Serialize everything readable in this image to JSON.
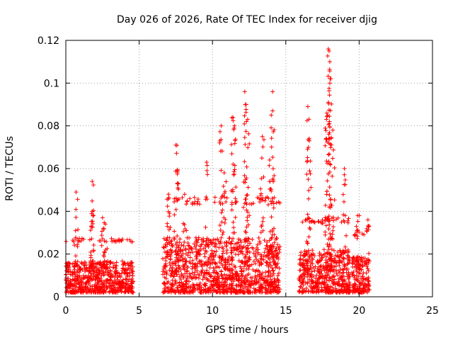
{
  "chart_data": {
    "type": "scatter",
    "title": "Day 026 of 2026, Rate Of TEC Index for receiver djig",
    "xlabel": "GPS time / hours",
    "ylabel": "ROTI / TECUs",
    "xlim": [
      0,
      25
    ],
    "ylim": [
      0,
      0.12
    ],
    "xticks": [
      0,
      5,
      10,
      15,
      20,
      25
    ],
    "xtick_labels": [
      "0",
      "5",
      "10",
      "15",
      "20",
      "25"
    ],
    "yticks": [
      0,
      0.02,
      0.04,
      0.06,
      0.08,
      0.1,
      0.12
    ],
    "ytick_labels": [
      "0",
      "0.02",
      "0.04",
      "0.06",
      "0.08",
      "0.1",
      "0.12"
    ],
    "grid": true,
    "marker": "plus",
    "color": "#ff0000",
    "segments": [
      {
        "x_start": 0.0,
        "x_end": 4.6,
        "y_base_min": 0.002,
        "y_base_max": 0.018
      },
      {
        "x_start": 6.6,
        "x_end": 14.6,
        "y_base_min": 0.002,
        "y_base_max": 0.03
      },
      {
        "x_start": 15.9,
        "x_end": 19.4,
        "y_base_min": 0.002,
        "y_base_max": 0.024
      },
      {
        "x_start": 19.5,
        "x_end": 20.7,
        "y_base_min": 0.002,
        "y_base_max": 0.02
      }
    ],
    "peaks": [
      {
        "x": 0.7,
        "y": 0.049
      },
      {
        "x": 1.8,
        "y": 0.054
      },
      {
        "x": 1.8,
        "y": 0.04
      },
      {
        "x": 2.5,
        "y": 0.037
      },
      {
        "x": 2.7,
        "y": 0.034
      },
      {
        "x": 7.0,
        "y": 0.048
      },
      {
        "x": 7.5,
        "y": 0.071
      },
      {
        "x": 7.6,
        "y": 0.059
      },
      {
        "x": 8.1,
        "y": 0.048
      },
      {
        "x": 9.6,
        "y": 0.063
      },
      {
        "x": 10.6,
        "y": 0.08
      },
      {
        "x": 10.8,
        "y": 0.058
      },
      {
        "x": 11.4,
        "y": 0.084
      },
      {
        "x": 11.5,
        "y": 0.08
      },
      {
        "x": 12.2,
        "y": 0.096
      },
      {
        "x": 12.3,
        "y": 0.09
      },
      {
        "x": 12.4,
        "y": 0.083
      },
      {
        "x": 13.4,
        "y": 0.075
      },
      {
        "x": 13.9,
        "y": 0.064
      },
      {
        "x": 14.1,
        "y": 0.096
      },
      {
        "x": 14.1,
        "y": 0.087
      },
      {
        "x": 16.5,
        "y": 0.089
      },
      {
        "x": 16.6,
        "y": 0.074
      },
      {
        "x": 17.9,
        "y": 0.116
      },
      {
        "x": 18.0,
        "y": 0.11
      },
      {
        "x": 18.0,
        "y": 0.1
      },
      {
        "x": 17.9,
        "y": 0.091
      },
      {
        "x": 17.8,
        "y": 0.086
      },
      {
        "x": 18.2,
        "y": 0.078
      },
      {
        "x": 19.0,
        "y": 0.06
      },
      {
        "x": 19.9,
        "y": 0.038
      },
      {
        "x": 20.6,
        "y": 0.036
      }
    ]
  }
}
